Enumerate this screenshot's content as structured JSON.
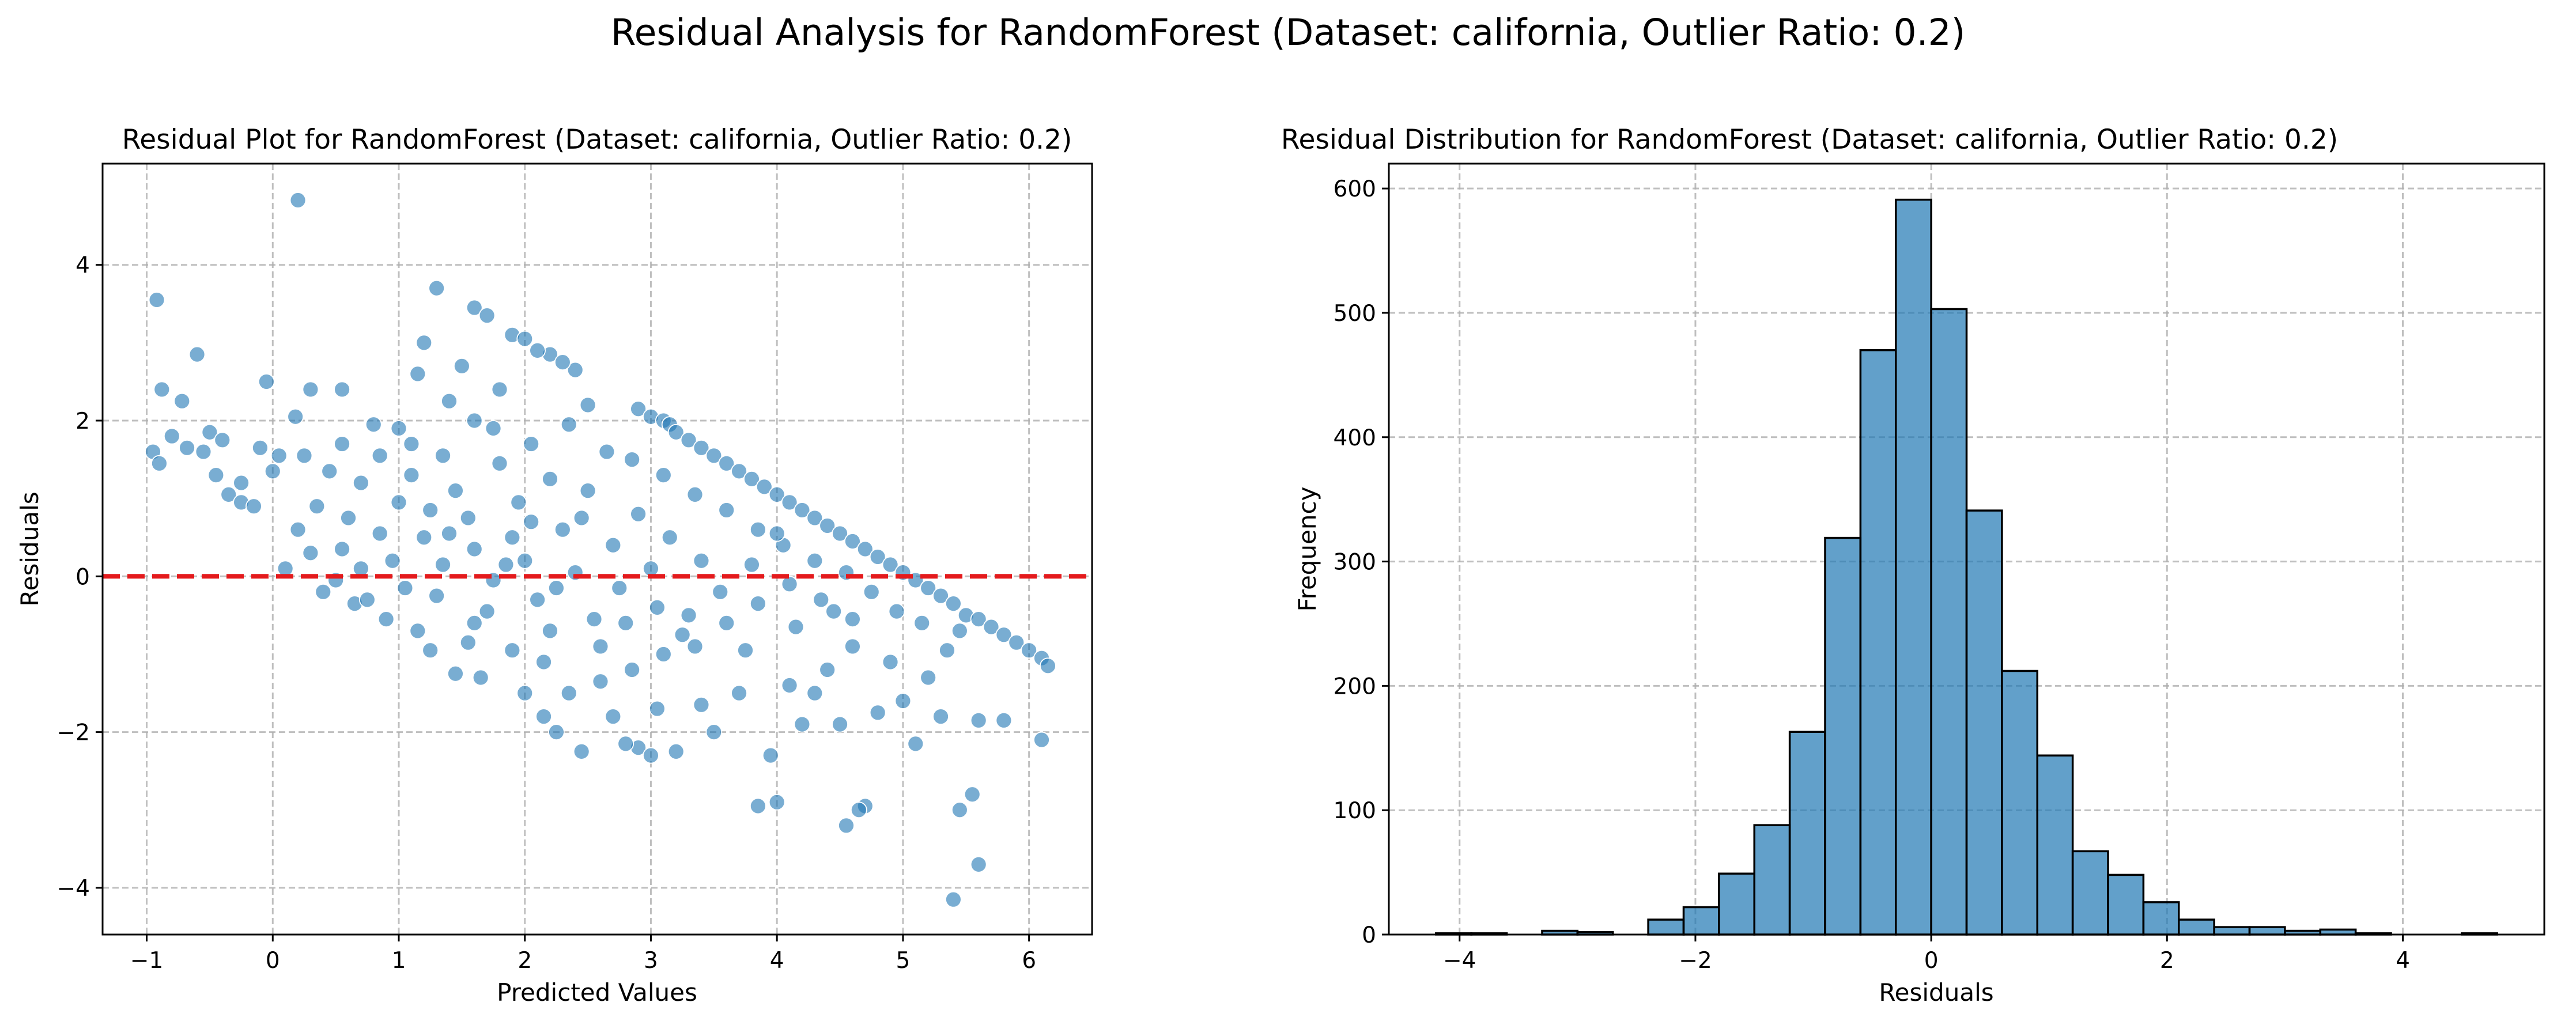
{
  "figure": {
    "suptitle": "Residual Analysis for RandomForest (Dataset: california, Outlier Ratio: 0.2)"
  },
  "chart_data": [
    {
      "type": "scatter",
      "title": "Residual Plot for RandomForest (Dataset: california, Outlier Ratio: 0.2)",
      "xlabel": "Predicted Values",
      "ylabel": "Residuals",
      "xlim": [
        -1.35,
        6.5
      ],
      "ylim": [
        -4.6,
        5.3
      ],
      "xticks": [
        -1,
        0,
        1,
        2,
        3,
        4,
        5,
        6
      ],
      "xtick_labels": [
        "−1",
        "0",
        "1",
        "2",
        "3",
        "4",
        "5",
        "6"
      ],
      "yticks": [
        -4,
        -2,
        0,
        2,
        4
      ],
      "ytick_labels": [
        "−4",
        "−2",
        "0",
        "2",
        "4"
      ],
      "grid": true,
      "point_color": "#1f77b4",
      "reference_line": {
        "y": 0,
        "color": "#e41a1c",
        "style": "dashed"
      },
      "points": [
        [
          0.2,
          4.83
        ],
        [
          -0.92,
          3.55
        ],
        [
          -0.88,
          2.4
        ],
        [
          -0.6,
          2.85
        ],
        [
          -0.72,
          2.25
        ],
        [
          -0.95,
          1.6
        ],
        [
          -0.9,
          1.45
        ],
        [
          -0.8,
          1.8
        ],
        [
          -0.68,
          1.65
        ],
        [
          -0.55,
          1.6
        ],
        [
          -0.5,
          1.85
        ],
        [
          -0.4,
          1.75
        ],
        [
          -0.35,
          1.05
        ],
        [
          -0.25,
          0.95
        ],
        [
          -0.1,
          1.65
        ],
        [
          -0.05,
          2.5
        ],
        [
          0.3,
          2.4
        ],
        [
          0.55,
          2.4
        ],
        [
          0.18,
          2.05
        ],
        [
          0.05,
          1.55
        ],
        [
          1.3,
          3.7
        ],
        [
          1.6,
          3.45
        ],
        [
          1.7,
          3.35
        ],
        [
          1.2,
          3.0
        ],
        [
          1.5,
          2.7
        ],
        [
          1.9,
          3.1
        ],
        [
          2.0,
          3.05
        ],
        [
          2.2,
          2.85
        ],
        [
          2.4,
          2.65
        ],
        [
          2.1,
          2.9
        ],
        [
          2.3,
          2.75
        ],
        [
          1.15,
          2.6
        ],
        [
          1.8,
          2.4
        ],
        [
          2.5,
          2.2
        ],
        [
          2.9,
          2.15
        ],
        [
          3.0,
          2.05
        ],
        [
          3.1,
          2.0
        ],
        [
          3.15,
          1.95
        ],
        [
          3.2,
          1.85
        ],
        [
          3.3,
          1.75
        ],
        [
          3.4,
          1.65
        ],
        [
          3.5,
          1.55
        ],
        [
          3.6,
          1.45
        ],
        [
          3.7,
          1.35
        ],
        [
          3.8,
          1.25
        ],
        [
          3.9,
          1.15
        ],
        [
          4.0,
          1.05
        ],
        [
          4.1,
          0.95
        ],
        [
          4.2,
          0.85
        ],
        [
          4.3,
          0.75
        ],
        [
          4.4,
          0.65
        ],
        [
          4.5,
          0.55
        ],
        [
          4.6,
          0.45
        ],
        [
          4.7,
          0.35
        ],
        [
          4.8,
          0.25
        ],
        [
          4.9,
          0.15
        ],
        [
          5.0,
          0.05
        ],
        [
          5.1,
          -0.05
        ],
        [
          5.2,
          -0.15
        ],
        [
          5.3,
          -0.25
        ],
        [
          5.4,
          -0.35
        ],
        [
          5.5,
          -0.5
        ],
        [
          5.6,
          -0.55
        ],
        [
          5.7,
          -0.65
        ],
        [
          5.8,
          -0.75
        ],
        [
          5.9,
          -0.85
        ],
        [
          6.0,
          -0.95
        ],
        [
          6.1,
          -1.05
        ],
        [
          6.15,
          -1.15
        ],
        [
          6.1,
          -2.1
        ],
        [
          5.8,
          -1.85
        ],
        [
          5.6,
          -1.85
        ],
        [
          5.55,
          -2.8
        ],
        [
          5.45,
          -3.0
        ],
        [
          5.6,
          -3.7
        ],
        [
          5.4,
          -4.15
        ],
        [
          5.3,
          -1.8
        ],
        [
          5.1,
          -2.15
        ],
        [
          4.7,
          -2.95
        ],
        [
          4.65,
          -3.0
        ],
        [
          4.55,
          -3.2
        ],
        [
          4.0,
          -2.9
        ],
        [
          3.85,
          -2.95
        ],
        [
          3.95,
          -2.3
        ],
        [
          3.5,
          -2.0
        ],
        [
          3.2,
          -2.25
        ],
        [
          2.9,
          -2.2
        ],
        [
          2.45,
          -2.25
        ],
        [
          2.25,
          -2.0
        ],
        [
          2.15,
          -1.8
        ],
        [
          2.8,
          -2.15
        ],
        [
          3.0,
          -2.3
        ],
        [
          4.2,
          -1.9
        ],
        [
          4.5,
          -1.9
        ],
        [
          4.8,
          -1.75
        ],
        [
          4.3,
          -1.5
        ],
        [
          5.0,
          -1.6
        ],
        [
          5.2,
          -1.3
        ],
        [
          5.35,
          -0.95
        ],
        [
          5.45,
          -0.7
        ],
        [
          4.9,
          -1.1
        ],
        [
          4.6,
          -0.9
        ],
        [
          4.4,
          -1.2
        ],
        [
          4.1,
          -1.4
        ],
        [
          3.7,
          -1.5
        ],
        [
          3.4,
          -1.65
        ],
        [
          3.05,
          -1.7
        ],
        [
          2.7,
          -1.8
        ],
        [
          2.0,
          -1.5
        ],
        [
          1.65,
          -1.3
        ],
        [
          1.45,
          -1.25
        ],
        [
          1.25,
          -0.95
        ],
        [
          0.9,
          -0.55
        ],
        [
          0.65,
          -0.35
        ],
        [
          0.4,
          -0.2
        ],
        [
          0.1,
          0.1
        ],
        [
          1.0,
          1.9
        ],
        [
          1.4,
          2.25
        ],
        [
          1.6,
          2.0
        ],
        [
          0.8,
          1.95
        ],
        [
          0.55,
          1.7
        ],
        [
          0.85,
          1.55
        ],
        [
          0.25,
          1.55
        ],
        [
          0.45,
          1.35
        ],
        [
          0.7,
          1.2
        ],
        [
          1.1,
          1.7
        ],
        [
          1.35,
          1.55
        ],
        [
          1.75,
          1.9
        ],
        [
          2.05,
          1.7
        ],
        [
          2.35,
          1.95
        ],
        [
          2.65,
          1.6
        ],
        [
          2.85,
          1.5
        ],
        [
          3.1,
          1.3
        ],
        [
          3.35,
          1.05
        ],
        [
          3.6,
          0.85
        ],
        [
          3.85,
          0.6
        ],
        [
          4.05,
          0.4
        ],
        [
          4.3,
          0.2
        ],
        [
          4.55,
          0.05
        ],
        [
          4.75,
          -0.2
        ],
        [
          4.95,
          -0.45
        ],
        [
          5.15,
          -0.6
        ],
        [
          4.6,
          -0.55
        ],
        [
          4.35,
          -0.3
        ],
        [
          4.1,
          -0.1
        ],
        [
          3.85,
          -0.35
        ],
        [
          3.6,
          -0.6
        ],
        [
          3.35,
          -0.9
        ],
        [
          3.1,
          -1.0
        ],
        [
          2.85,
          -1.2
        ],
        [
          2.6,
          -1.35
        ],
        [
          2.35,
          -1.5
        ],
        [
          2.6,
          -0.9
        ],
        [
          2.2,
          -0.7
        ],
        [
          1.9,
          -0.95
        ],
        [
          1.55,
          -0.85
        ],
        [
          1.15,
          -0.7
        ],
        [
          0.75,
          -0.3
        ],
        [
          0.5,
          -0.05
        ],
        [
          0.3,
          0.3
        ],
        [
          -0.15,
          0.9
        ],
        [
          -0.25,
          1.2
        ],
        [
          0.0,
          1.35
        ],
        [
          -0.45,
          1.3
        ],
        [
          3.15,
          0.5
        ],
        [
          3.4,
          0.2
        ],
        [
          2.9,
          0.8
        ],
        [
          2.5,
          1.1
        ],
        [
          2.2,
          1.25
        ],
        [
          1.8,
          1.45
        ],
        [
          1.45,
          1.1
        ],
        [
          1.0,
          0.95
        ],
        [
          0.6,
          0.75
        ],
        [
          0.2,
          0.6
        ],
        [
          1.2,
          0.5
        ],
        [
          1.6,
          0.35
        ],
        [
          2.0,
          0.2
        ],
        [
          2.4,
          0.05
        ],
        [
          2.75,
          -0.15
        ],
        [
          3.05,
          -0.4
        ],
        [
          3.3,
          -0.5
        ],
        [
          3.55,
          -0.2
        ],
        [
          3.8,
          0.15
        ],
        [
          4.0,
          0.55
        ],
        [
          1.3,
          -0.25
        ],
        [
          1.7,
          -0.45
        ],
        [
          2.1,
          -0.3
        ],
        [
          0.95,
          0.2
        ],
        [
          0.55,
          0.35
        ],
        [
          0.35,
          0.9
        ],
        [
          1.55,
          0.75
        ],
        [
          1.95,
          0.95
        ],
        [
          2.3,
          0.6
        ],
        [
          2.7,
          0.4
        ],
        [
          3.0,
          0.1
        ],
        [
          2.55,
          -0.55
        ],
        [
          2.15,
          -1.1
        ],
        [
          1.75,
          -0.05
        ],
        [
          1.35,
          0.15
        ],
        [
          0.85,
          0.55
        ],
        [
          1.05,
          -0.15
        ],
        [
          0.7,
          0.1
        ],
        [
          1.9,
          0.5
        ],
        [
          2.45,
          0.75
        ],
        [
          3.25,
          -0.75
        ],
        [
          3.75,
          -0.95
        ],
        [
          4.15,
          -0.65
        ],
        [
          4.45,
          -0.45
        ],
        [
          1.1,
          1.3
        ],
        [
          1.25,
          0.85
        ],
        [
          1.85,
          0.15
        ],
        [
          2.25,
          -0.15
        ],
        [
          2.05,
          0.7
        ],
        [
          1.4,
          0.55
        ],
        [
          1.6,
          -0.6
        ],
        [
          2.8,
          -0.6
        ]
      ]
    },
    {
      "type": "bar",
      "title": "Residual Distribution for RandomForest (Dataset: california, Outlier Ratio: 0.2)",
      "xlabel": "Residuals",
      "ylabel": "Frequency",
      "xlim": [
        -4.6,
        5.2
      ],
      "ylim": [
        0,
        620
      ],
      "xticks": [
        -4,
        -2,
        0,
        2,
        4
      ],
      "xtick_labels": [
        "−4",
        "−2",
        "0",
        "2",
        "4"
      ],
      "yticks": [
        0,
        100,
        200,
        300,
        400,
        500,
        600
      ],
      "ytick_labels": [
        "0",
        "100",
        "200",
        "300",
        "400",
        "500",
        "600"
      ],
      "grid": true,
      "bar_color": "#1f77b4",
      "bin_edges": [
        -4.2,
        -3.9,
        -3.6,
        -3.3,
        -3.0,
        -2.7,
        -2.4,
        -2.1,
        -1.8,
        -1.5,
        -1.2,
        -0.9,
        -0.6,
        -0.3,
        0.0,
        0.3,
        0.6,
        0.9,
        1.2,
        1.5,
        1.8,
        2.1,
        2.4,
        2.7,
        3.0,
        3.3,
        3.6,
        3.9,
        4.2,
        4.5,
        4.8
      ],
      "values": [
        1,
        1,
        0,
        3,
        2,
        0,
        12,
        22,
        49,
        88,
        163,
        319,
        470,
        591,
        503,
        341,
        212,
        144,
        67,
        48,
        26,
        12,
        6,
        6,
        3,
        4,
        1,
        0,
        0,
        1
      ]
    }
  ]
}
